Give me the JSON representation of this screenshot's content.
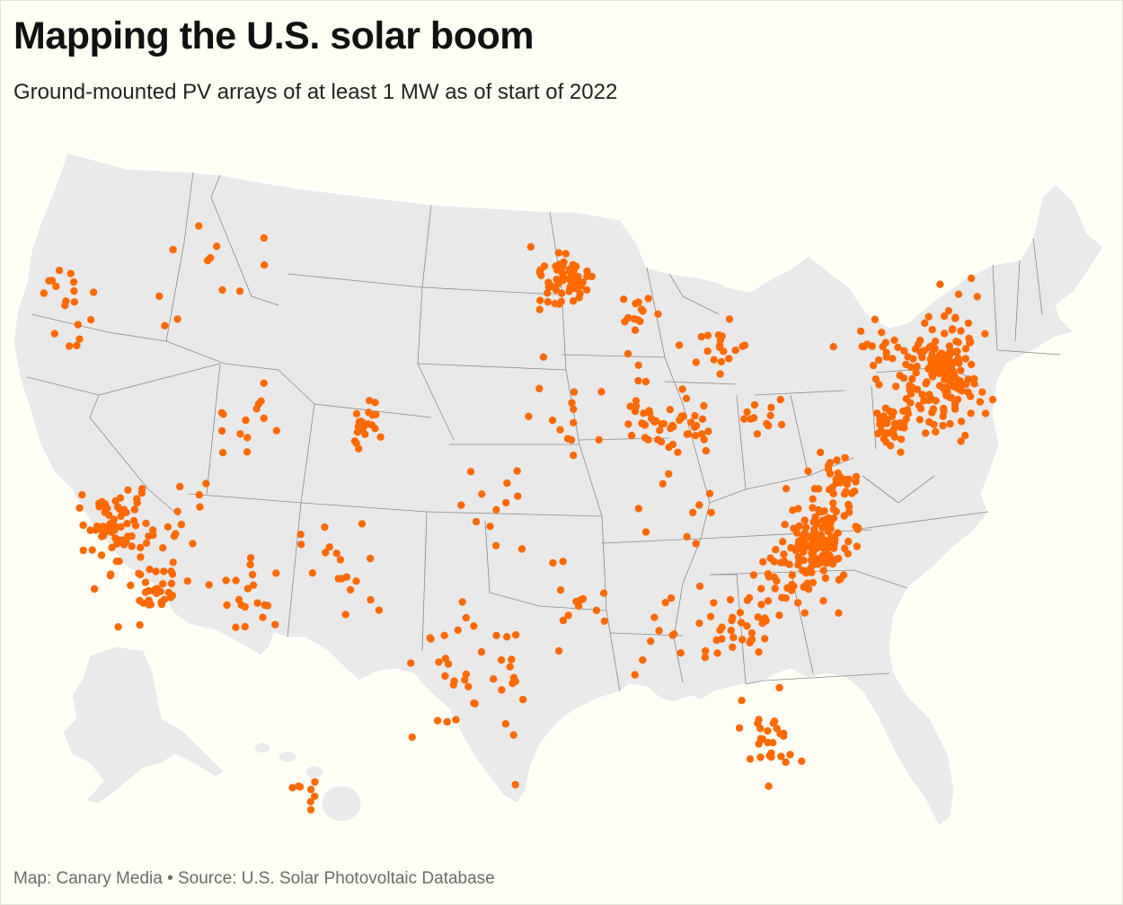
{
  "title": "Mapping the U.S. solar boom",
  "subtitle": "Ground-mounted PV arrays of at least 1 MW as of start of 2022",
  "source": "Map: Canary Media • Source: U.S. Solar Photovoltaic Database",
  "colors": {
    "background": "#fefef5",
    "land": "#e9e9e9",
    "state_border": "#8a8a8a",
    "marker": "#ff6a00"
  },
  "map": {
    "projection": "albers-usa",
    "marker_meaning": "ground-mounted PV array >= 1 MW",
    "regions_shown": [
      "contiguous-us",
      "alaska",
      "hawaii"
    ],
    "clusters": [
      {
        "name": "Northeast corridor",
        "lat": 41.8,
        "lon": -72.0,
        "count": 140,
        "spread": 1.6
      },
      {
        "name": "North Carolina",
        "lat": 35.6,
        "lon": -78.8,
        "count": 150,
        "spread": 1.2
      },
      {
        "name": "Minnesota",
        "lat": 45.0,
        "lon": -93.6,
        "count": 60,
        "spread": 0.9
      },
      {
        "name": "California Central Valley",
        "lat": 36.4,
        "lon": -119.6,
        "count": 70,
        "spread": 1.4
      },
      {
        "name": "Southern California",
        "lat": 34.1,
        "lon": -117.2,
        "count": 35,
        "spread": 1.0
      },
      {
        "name": "New Jersey",
        "lat": 40.1,
        "lon": -74.6,
        "count": 35,
        "spread": 0.6
      },
      {
        "name": "Georgia",
        "lat": 32.5,
        "lon": -83.4,
        "count": 35,
        "spread": 1.2
      },
      {
        "name": "Florida",
        "lat": 28.2,
        "lon": -81.8,
        "count": 28,
        "spread": 1.1
      },
      {
        "name": "South Carolina",
        "lat": 34.0,
        "lon": -80.8,
        "count": 25,
        "spread": 1.0
      },
      {
        "name": "Virginia",
        "lat": 37.8,
        "lon": -78.0,
        "count": 30,
        "spread": 1.0
      },
      {
        "name": "Illinois",
        "lat": 40.0,
        "lon": -88.8,
        "count": 25,
        "spread": 1.3
      },
      {
        "name": "Indiana",
        "lat": 39.8,
        "lon": -86.2,
        "count": 25,
        "spread": 1.0
      },
      {
        "name": "Michigan",
        "lat": 42.8,
        "lon": -84.6,
        "count": 20,
        "spread": 1.0
      },
      {
        "name": "Wisconsin",
        "lat": 43.5,
        "lon": -89.4,
        "count": 15,
        "spread": 0.9
      },
      {
        "name": "Colorado Front Range",
        "lat": 39.8,
        "lon": -104.8,
        "count": 22,
        "spread": 0.6
      },
      {
        "name": "Texas",
        "lat": 30.5,
        "lon": -98.5,
        "count": 40,
        "spread": 2.5
      },
      {
        "name": "Arizona",
        "lat": 33.2,
        "lon": -112.0,
        "count": 20,
        "spread": 1.3
      },
      {
        "name": "New Mexico",
        "lat": 34.5,
        "lon": -106.5,
        "count": 18,
        "spread": 1.5
      },
      {
        "name": "Utah",
        "lat": 39.8,
        "lon": -111.8,
        "count": 14,
        "spread": 1.2
      },
      {
        "name": "Oregon",
        "lat": 44.5,
        "lon": -122.0,
        "count": 18,
        "spread": 1.2
      },
      {
        "name": "Nevada",
        "lat": 36.8,
        "lon": -115.5,
        "count": 10,
        "spread": 1.2
      },
      {
        "name": "Massachusetts",
        "lat": 42.2,
        "lon": -71.6,
        "count": 40,
        "spread": 0.5
      },
      {
        "name": "Ohio",
        "lat": 40.3,
        "lon": -82.5,
        "count": 12,
        "spread": 1.0
      },
      {
        "name": "Iowa-Missouri",
        "lat": 40.0,
        "lon": -93.5,
        "count": 14,
        "spread": 1.6
      },
      {
        "name": "Arkansas-Louisiana",
        "lat": 33.5,
        "lon": -92.5,
        "count": 12,
        "spread": 1.5
      },
      {
        "name": "Alabama-Mississippi",
        "lat": 32.5,
        "lon": -88.0,
        "count": 10,
        "spread": 1.4
      },
      {
        "name": "Tennessee-Kentucky",
        "lat": 36.3,
        "lon": -86.5,
        "count": 10,
        "spread": 1.3
      },
      {
        "name": "Oklahoma-Kansas",
        "lat": 37.0,
        "lon": -97.5,
        "count": 12,
        "spread": 1.6
      },
      {
        "name": "Idaho-Montana",
        "lat": 45.5,
        "lon": -113.5,
        "count": 12,
        "spread": 2.0
      },
      {
        "name": "Hawaii",
        "lat": 20.5,
        "lon": -157.0,
        "count": 8,
        "spread": 0.6
      },
      {
        "name": "Maine-NH-VT",
        "lat": 44.0,
        "lon": -71.0,
        "count": 14,
        "spread": 1.0
      },
      {
        "name": "Upstate NY",
        "lat": 42.7,
        "lon": -75.5,
        "count": 18,
        "spread": 1.3
      }
    ]
  }
}
